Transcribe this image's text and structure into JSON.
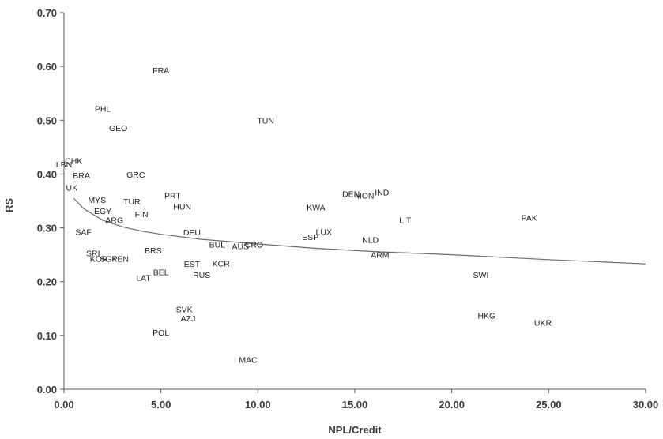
{
  "chart_data": {
    "type": "scatter",
    "title": "",
    "xlabel": "NPL/Credit",
    "ylabel": "RS",
    "xlim": [
      0,
      30
    ],
    "ylim": [
      0,
      0.7
    ],
    "grid": false,
    "legend": "none",
    "x_ticks": [
      "0.00",
      "5.00",
      "10.00",
      "15.00",
      "20.00",
      "25.00",
      "30.00"
    ],
    "y_ticks": [
      "0.00",
      "0.10",
      "0.20",
      "0.30",
      "0.40",
      "0.50",
      "0.60",
      "0.70"
    ],
    "points": [
      {
        "label": "FRA",
        "x": 5.0,
        "y": 0.593
      },
      {
        "label": "PHL",
        "x": 2.0,
        "y": 0.522
      },
      {
        "label": "TUN",
        "x": 10.4,
        "y": 0.5
      },
      {
        "label": "GEO",
        "x": 2.8,
        "y": 0.486
      },
      {
        "label": "CHK",
        "x": 0.5,
        "y": 0.425
      },
      {
        "label": "LBN",
        "x": 0.0,
        "y": 0.418
      },
      {
        "label": "BRA",
        "x": 0.9,
        "y": 0.398
      },
      {
        "label": "GRC",
        "x": 3.7,
        "y": 0.399
      },
      {
        "label": "UK",
        "x": 0.4,
        "y": 0.375
      },
      {
        "label": "PRT",
        "x": 5.6,
        "y": 0.36
      },
      {
        "label": "MYS",
        "x": 1.7,
        "y": 0.352
      },
      {
        "label": "TUR",
        "x": 3.5,
        "y": 0.349
      },
      {
        "label": "HUN",
        "x": 6.1,
        "y": 0.34
      },
      {
        "label": "EGY",
        "x": 2.0,
        "y": 0.332
      },
      {
        "label": "FIN",
        "x": 4.0,
        "y": 0.326
      },
      {
        "label": "ARG",
        "x": 2.6,
        "y": 0.315
      },
      {
        "label": "SAF",
        "x": 1.0,
        "y": 0.293
      },
      {
        "label": "DEU",
        "x": 6.6,
        "y": 0.292
      },
      {
        "label": "BUL",
        "x": 7.9,
        "y": 0.269
      },
      {
        "label": "AUS",
        "x": 9.1,
        "y": 0.266
      },
      {
        "label": "CRO",
        "x": 9.8,
        "y": 0.269
      },
      {
        "label": "BRS",
        "x": 4.6,
        "y": 0.258
      },
      {
        "label": "SRI",
        "x": 1.5,
        "y": 0.253
      },
      {
        "label": "KOR",
        "x": 1.8,
        "y": 0.243
      },
      {
        "label": "SGP",
        "x": 2.3,
        "y": 0.243
      },
      {
        "label": "KEN",
        "x": 2.9,
        "y": 0.243
      },
      {
        "label": "EST",
        "x": 6.6,
        "y": 0.233
      },
      {
        "label": "KCR",
        "x": 8.1,
        "y": 0.234
      },
      {
        "label": "BEL",
        "x": 5.0,
        "y": 0.218
      },
      {
        "label": "RUS",
        "x": 7.1,
        "y": 0.213
      },
      {
        "label": "LAT",
        "x": 4.1,
        "y": 0.208
      },
      {
        "label": "DEN",
        "x": 14.8,
        "y": 0.363
      },
      {
        "label": "MON",
        "x": 15.5,
        "y": 0.36
      },
      {
        "label": "IND",
        "x": 16.4,
        "y": 0.366
      },
      {
        "label": "KWA",
        "x": 13.0,
        "y": 0.338
      },
      {
        "label": "LIT",
        "x": 17.6,
        "y": 0.315
      },
      {
        "label": "PAK",
        "x": 24.0,
        "y": 0.319
      },
      {
        "label": "LUX",
        "x": 13.4,
        "y": 0.293
      },
      {
        "label": "ESP",
        "x": 12.7,
        "y": 0.283
      },
      {
        "label": "NLD",
        "x": 15.8,
        "y": 0.278
      },
      {
        "label": "ARM",
        "x": 16.3,
        "y": 0.25
      },
      {
        "label": "SWI",
        "x": 21.5,
        "y": 0.213
      },
      {
        "label": "SVK",
        "x": 6.2,
        "y": 0.149
      },
      {
        "label": "AZJ",
        "x": 6.4,
        "y": 0.132
      },
      {
        "label": "HKG",
        "x": 21.8,
        "y": 0.137
      },
      {
        "label": "UKR",
        "x": 24.7,
        "y": 0.124
      },
      {
        "label": "POL",
        "x": 5.0,
        "y": 0.106
      },
      {
        "label": "MAC",
        "x": 9.5,
        "y": 0.055
      }
    ],
    "trendline": {
      "type": "power",
      "x": [
        0.5,
        1,
        2,
        3,
        4,
        5,
        7,
        10,
        13,
        16,
        20,
        25,
        30
      ],
      "y": [
        0.355,
        0.336,
        0.314,
        0.302,
        0.294,
        0.288,
        0.279,
        0.27,
        0.262,
        0.256,
        0.25,
        0.241,
        0.233
      ]
    },
    "colors": {
      "axis": "#555555",
      "label": "#222222",
      "trend": "#6b6b6b"
    }
  }
}
